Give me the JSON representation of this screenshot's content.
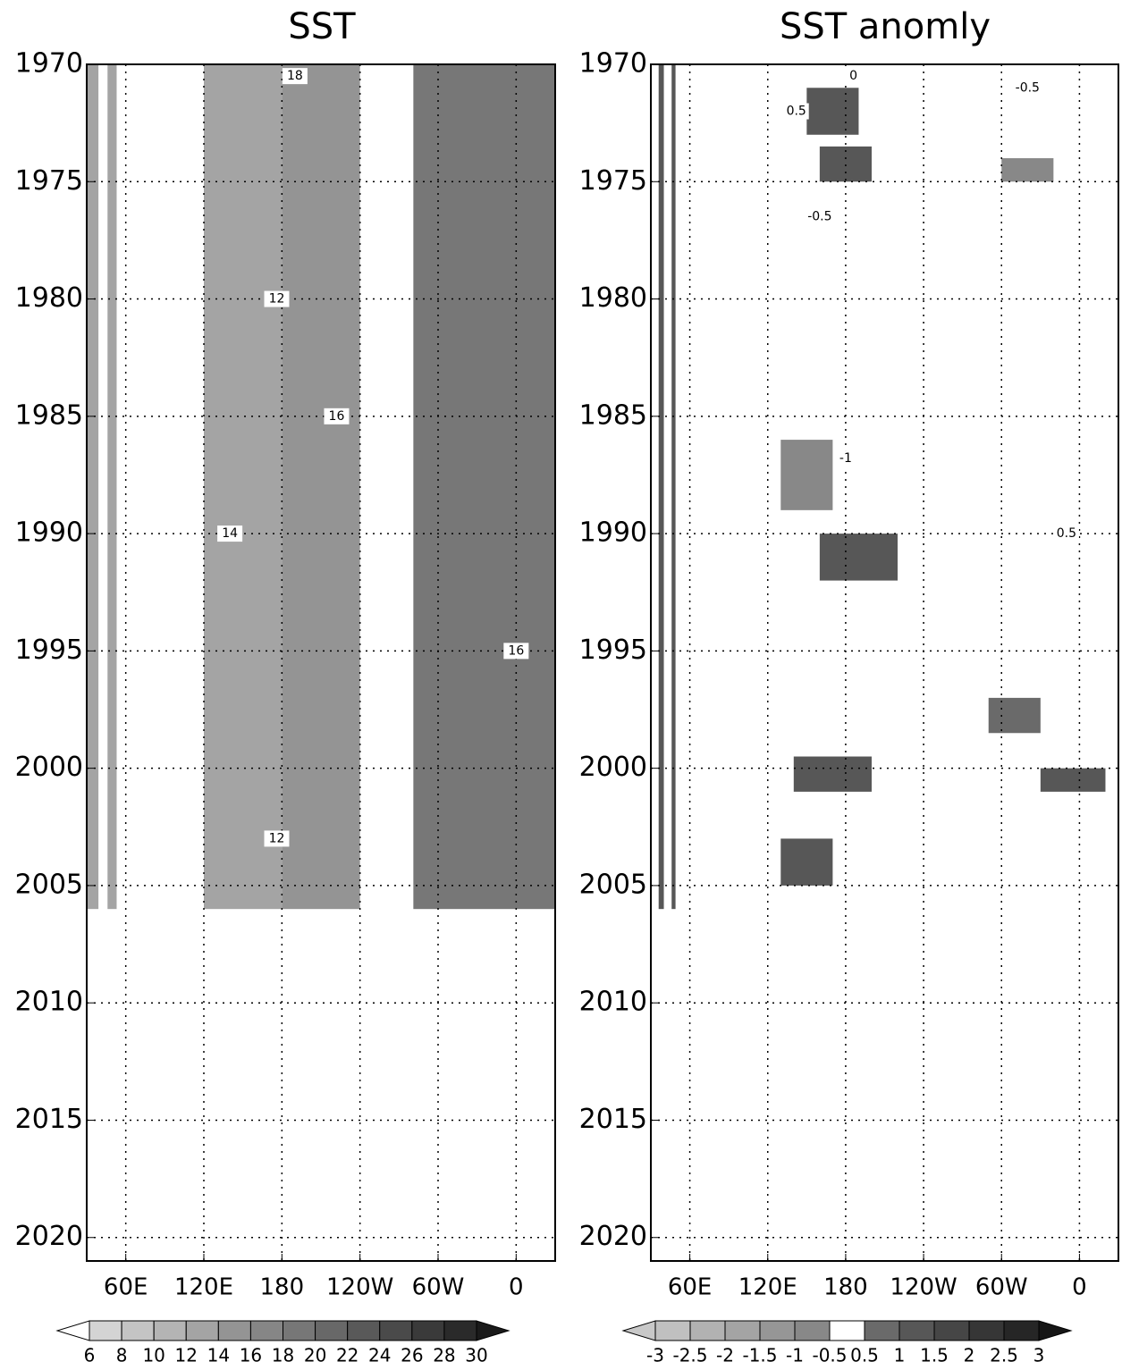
{
  "chart_data": [
    {
      "type": "heatmap",
      "title": "SST",
      "xlim": [
        30,
        390
      ],
      "xticks": [
        {
          "value": 60,
          "label": "60E"
        },
        {
          "value": 120,
          "label": "120E"
        },
        180,
        {
          "value": 240,
          "label": "120W"
        },
        {
          "value": 300,
          "label": "60W"
        },
        {
          "value": 360,
          "label": "0"
        }
      ],
      "ylim": [
        2021,
        1970
      ],
      "yticks": [
        1970,
        1975,
        1980,
        1985,
        1990,
        1995,
        2000,
        2005,
        2010,
        2015,
        2020
      ],
      "grid": true,
      "regions": [
        {
          "lon": [
            30,
            39
          ],
          "years": [
            1970,
            2006
          ],
          "value": 13
        },
        {
          "lon": [
            46,
            53
          ],
          "years": [
            1970,
            2006
          ],
          "value": 13
        },
        {
          "lon": [
            120,
            180
          ],
          "years": [
            1970,
            2006
          ],
          "value": 13
        },
        {
          "lon": [
            180,
            240
          ],
          "years": [
            1970,
            2006
          ],
          "value": 15
        },
        {
          "lon": [
            281,
            390
          ],
          "years": [
            1970,
            2006
          ],
          "value": 19
        }
      ],
      "annotations": [
        {
          "text": "18",
          "x": 190,
          "y": 1970.5
        },
        {
          "text": "12",
          "x": 176,
          "y": 1980
        },
        {
          "text": "16",
          "x": 222,
          "y": 1985
        },
        {
          "text": "14",
          "x": 140,
          "y": 1990
        },
        {
          "text": "16",
          "x": 360,
          "y": 1995
        },
        {
          "text": "12",
          "x": 176,
          "y": 2003
        }
      ],
      "colorbar": {
        "levels": [
          6,
          8,
          10,
          12,
          14,
          16,
          18,
          20,
          22,
          24,
          26,
          28,
          30
        ],
        "colors": [
          "#ffffff",
          "#d4d4d4",
          "#c4c4c4",
          "#b4b4b4",
          "#a4a4a4",
          "#949494",
          "#868686",
          "#777777",
          "#686868",
          "#595959",
          "#4a4a4a",
          "#3a3a3a",
          "#2a2a2a",
          "#1a1a1a"
        ]
      }
    },
    {
      "type": "heatmap",
      "title": "SST anomly",
      "xlim": [
        30,
        390
      ],
      "xticks": [
        {
          "value": 60,
          "label": "60E"
        },
        {
          "value": 120,
          "label": "120E"
        },
        180,
        {
          "value": 240,
          "label": "120W"
        },
        {
          "value": 300,
          "label": "60W"
        },
        {
          "value": 360,
          "label": "0"
        }
      ],
      "ylim": [
        2021,
        1970
      ],
      "yticks": [
        1970,
        1975,
        1980,
        1985,
        1990,
        1995,
        2000,
        2005,
        2010,
        2015,
        2020
      ],
      "grid": true,
      "regions": [
        {
          "lon": [
            36,
            40
          ],
          "years": [
            1970,
            2006
          ],
          "value": 1
        },
        {
          "lon": [
            46,
            49
          ],
          "years": [
            1970,
            2006
          ],
          "value": 1
        },
        {
          "lon": [
            120,
            240
          ],
          "years": [
            1970,
            2006
          ],
          "value": 0
        },
        {
          "lon": [
            277,
            390
          ],
          "years": [
            1970,
            2006
          ],
          "value": 0
        },
        {
          "lon": [
            150,
            190
          ],
          "years": [
            1971,
            1973
          ],
          "value": 1
        },
        {
          "lon": [
            160,
            200
          ],
          "years": [
            1973.5,
            1975
          ],
          "value": 1
        },
        {
          "lon": [
            130,
            170
          ],
          "years": [
            1986,
            1989
          ],
          "value": -1
        },
        {
          "lon": [
            160,
            220
          ],
          "years": [
            1990,
            1992
          ],
          "value": 1.2
        },
        {
          "lon": [
            140,
            200
          ],
          "years": [
            1999.5,
            2001
          ],
          "value": 1
        },
        {
          "lon": [
            130,
            170
          ],
          "years": [
            2003,
            2005
          ],
          "value": 1
        },
        {
          "lon": [
            300,
            340
          ],
          "years": [
            1974,
            1975
          ],
          "value": -0.7
        },
        {
          "lon": [
            290,
            330
          ],
          "years": [
            1997,
            1998.5
          ],
          "value": 0.8
        },
        {
          "lon": [
            330,
            380
          ],
          "years": [
            2000,
            2001
          ],
          "value": 1
        }
      ],
      "annotations": [
        {
          "text": "0",
          "x": 186,
          "y": 1970.5
        },
        {
          "text": "0.5",
          "x": 142,
          "y": 1972
        },
        {
          "text": "-0.5",
          "x": 160,
          "y": 1976.5
        },
        {
          "text": "-1",
          "x": 180,
          "y": 1986.8
        },
        {
          "text": "-0.5",
          "x": 320,
          "y": 1971
        },
        {
          "text": "0.5",
          "x": 350,
          "y": 1990
        }
      ],
      "colorbar": {
        "levels": [
          -3,
          -2.5,
          -2,
          -1.5,
          -1,
          -0.5,
          0.5,
          1,
          1.5,
          2,
          2.5,
          3
        ],
        "colors": [
          "#c8c8c8",
          "#c0c0c0",
          "#b2b2b2",
          "#a4a4a4",
          "#969696",
          "#888888",
          "#ffffff",
          "#6a6a6a",
          "#575757",
          "#464646",
          "#363636",
          "#262626",
          "#161616"
        ]
      }
    }
  ]
}
